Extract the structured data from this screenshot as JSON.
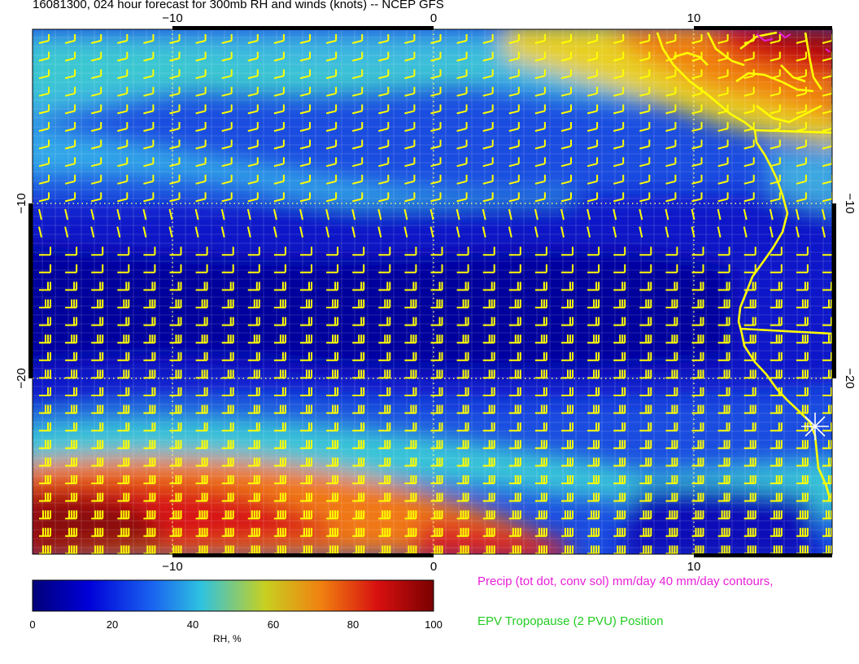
{
  "title": "16081300, 024 hour forecast for 300mb RH and winds (knots) -- NCEP GFS",
  "map": {
    "x_ticks": [
      "−10",
      "0",
      "10"
    ],
    "y_ticks": [
      "−10",
      "−20"
    ],
    "lon_range": [
      -15.5,
      15
    ],
    "lat_range": [
      -30,
      0
    ]
  },
  "colorbar": {
    "label": "RH, %",
    "ticks": [
      "0",
      "20",
      "40",
      "60",
      "80",
      "100"
    ],
    "range": [
      0,
      100
    ],
    "colors": [
      "#00007a",
      "#0000d8",
      "#1a64f0",
      "#2ec2e0",
      "#c8d020",
      "#f08010",
      "#d81010",
      "#7a0000"
    ]
  },
  "legend": {
    "precip": "Precip (tot dot, conv sol) mm/day 40 mm/day contours,",
    "epv": "EPV Tropopause (2 PVU) Position"
  },
  "colors": {
    "wind_barbs": "#ffff00",
    "coastline": "#ffff00",
    "precip": "#e81ed8",
    "epv": "#22cc22"
  }
}
